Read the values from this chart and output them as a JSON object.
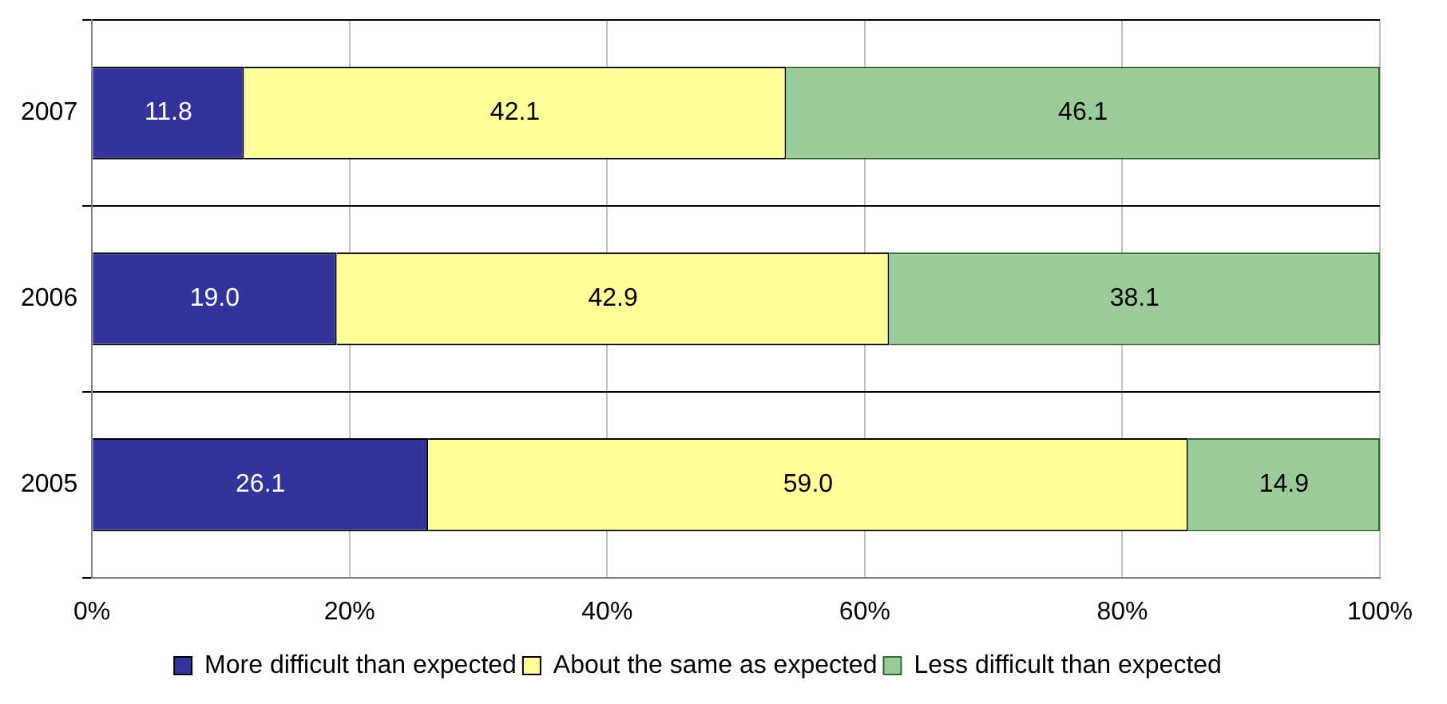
{
  "chart_data": {
    "type": "bar",
    "orientation": "horizontal",
    "stacked": true,
    "categories": [
      "2007",
      "2006",
      "2005"
    ],
    "series": [
      {
        "name": "More difficult than expected",
        "color": "#333399",
        "values": [
          11.8,
          19.0,
          26.1
        ],
        "value_labels": [
          "11.8",
          "19.0",
          "26.1"
        ]
      },
      {
        "name": "About the same as expected",
        "color": "#ffff99",
        "values": [
          42.1,
          42.9,
          59.0
        ],
        "value_labels": [
          "42.1",
          "42.9",
          "59.0"
        ]
      },
      {
        "name": "Less difficult than expected",
        "color": "#99cc99",
        "values": [
          46.1,
          38.1,
          14.9
        ],
        "value_labels": [
          "46.1",
          "38.1",
          "14.9"
        ]
      }
    ],
    "xlim": [
      0,
      100
    ],
    "xticks": [
      {
        "value": 0,
        "label": "0%"
      },
      {
        "value": 20,
        "label": "20%"
      },
      {
        "value": 40,
        "label": "40%"
      },
      {
        "value": 60,
        "label": "60%"
      },
      {
        "value": 80,
        "label": "80%"
      },
      {
        "value": 100,
        "label": "100%"
      }
    ],
    "grid": true,
    "legend": "bottom"
  }
}
